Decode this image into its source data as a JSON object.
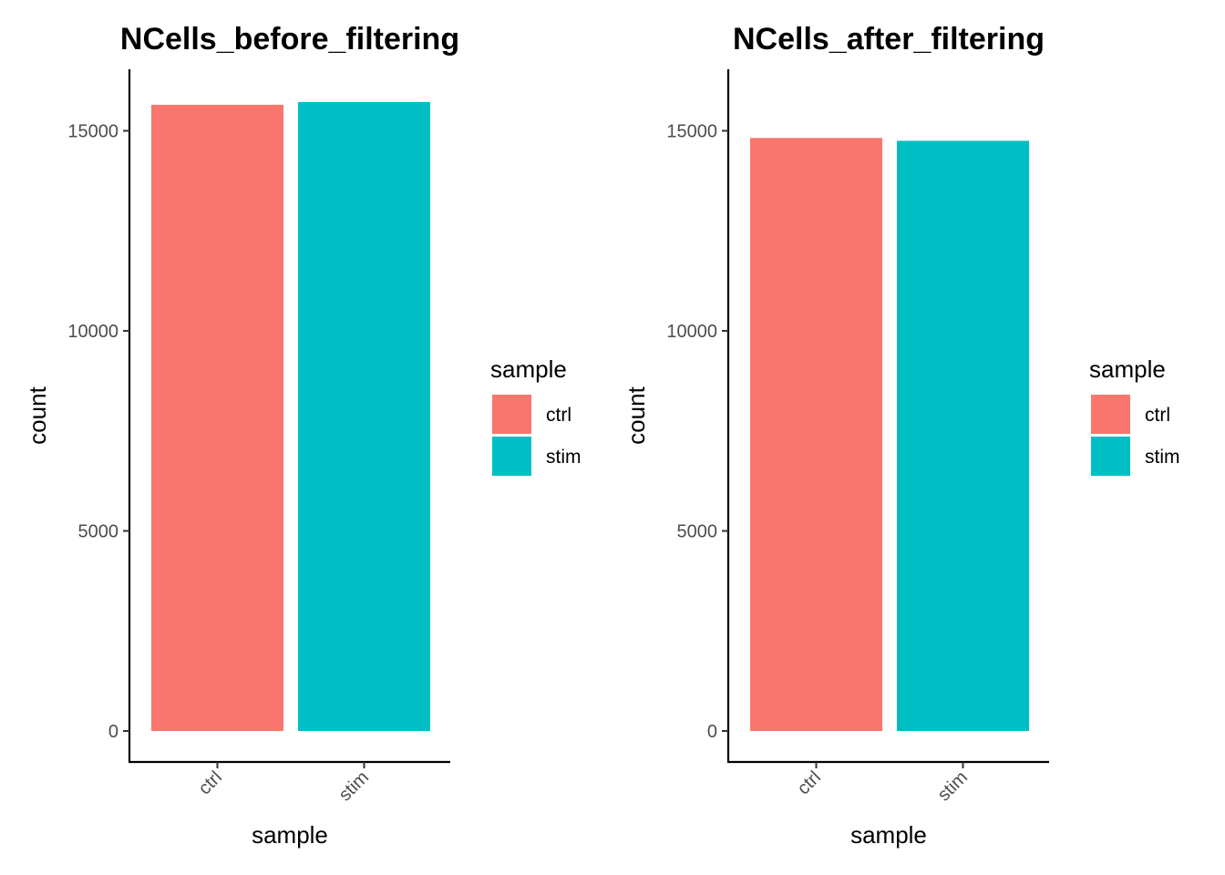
{
  "chart_data": [
    {
      "type": "bar",
      "title": "NCells_before_filtering",
      "xlabel": "sample",
      "ylabel": "count",
      "categories": [
        "ctrl",
        "stim"
      ],
      "values": [
        15650,
        15720
      ],
      "colors": [
        "#F8766D",
        "#00BFC4"
      ],
      "ylim": [
        0,
        16000
      ],
      "yticks": [
        0,
        5000,
        10000,
        15000
      ],
      "ytick_labels": [
        "0",
        "5000",
        "10000",
        "15000"
      ],
      "grid": false,
      "legend": {
        "title": "sample",
        "placement": "right",
        "entries": [
          {
            "label": "ctrl",
            "color": "#F8766D"
          },
          {
            "label": "stim",
            "color": "#00BFC4"
          }
        ]
      }
    },
    {
      "type": "bar",
      "title": "NCells_after_filtering",
      "xlabel": "sample",
      "ylabel": "count",
      "categories": [
        "ctrl",
        "stim"
      ],
      "values": [
        14820,
        14750
      ],
      "colors": [
        "#F8766D",
        "#00BFC4"
      ],
      "ylim": [
        0,
        16000
      ],
      "yticks": [
        0,
        5000,
        10000,
        15000
      ],
      "ytick_labels": [
        "0",
        "5000",
        "10000",
        "15000"
      ],
      "grid": false,
      "legend": {
        "title": "sample",
        "placement": "right",
        "entries": [
          {
            "label": "ctrl",
            "color": "#F8766D"
          },
          {
            "label": "stim",
            "color": "#00BFC4"
          }
        ]
      }
    }
  ]
}
